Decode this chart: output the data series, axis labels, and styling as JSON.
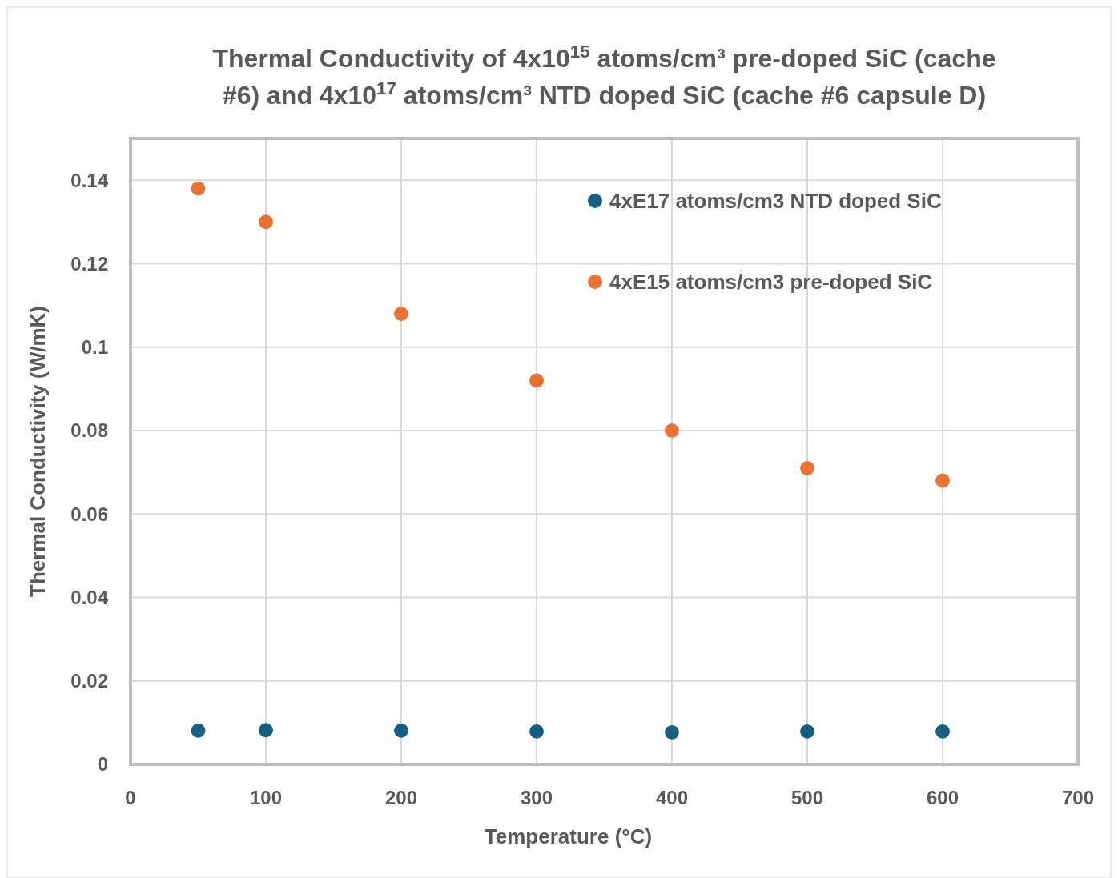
{
  "chart_data": {
    "type": "scatter",
    "title": "Thermal Conductivity of 4x10$^{15}$ atoms/cm³ pre-doped SiC (cache #6) and  4x10$^{17}$ atoms/cm³ NTD doped SiC (cache #6 capsule D)",
    "xlabel": "Temperature (°C)",
    "ylabel": "Thermal Conductivity (W/mK)",
    "series": [
      {
        "name": "4xE17 atoms/cm3 NTD doped SiC",
        "color": "#156082",
        "x": [
          50,
          100,
          200,
          300,
          400,
          500,
          600
        ],
        "values": [
          0.0081,
          0.0082,
          0.0081,
          0.0079,
          0.0077,
          0.0079,
          0.0079
        ]
      },
      {
        "name": "4xE15 atoms/cm3 pre-doped SiC",
        "color": "#e97132",
        "x": [
          50,
          100,
          200,
          300,
          400,
          500,
          600
        ],
        "values": [
          0.138,
          0.13,
          0.108,
          0.092,
          0.08,
          0.071,
          0.068
        ]
      }
    ],
    "xlim": [
      0,
      700
    ],
    "xticks": [
      0,
      100,
      200,
      300,
      400,
      500,
      600,
      700
    ],
    "ylim": [
      0,
      0.15
    ],
    "yticks": [
      0,
      0.02,
      0.04,
      0.06,
      0.08,
      0.1,
      0.12,
      0.14
    ],
    "grid": true,
    "legend": "top right",
    "marker": "circle"
  }
}
